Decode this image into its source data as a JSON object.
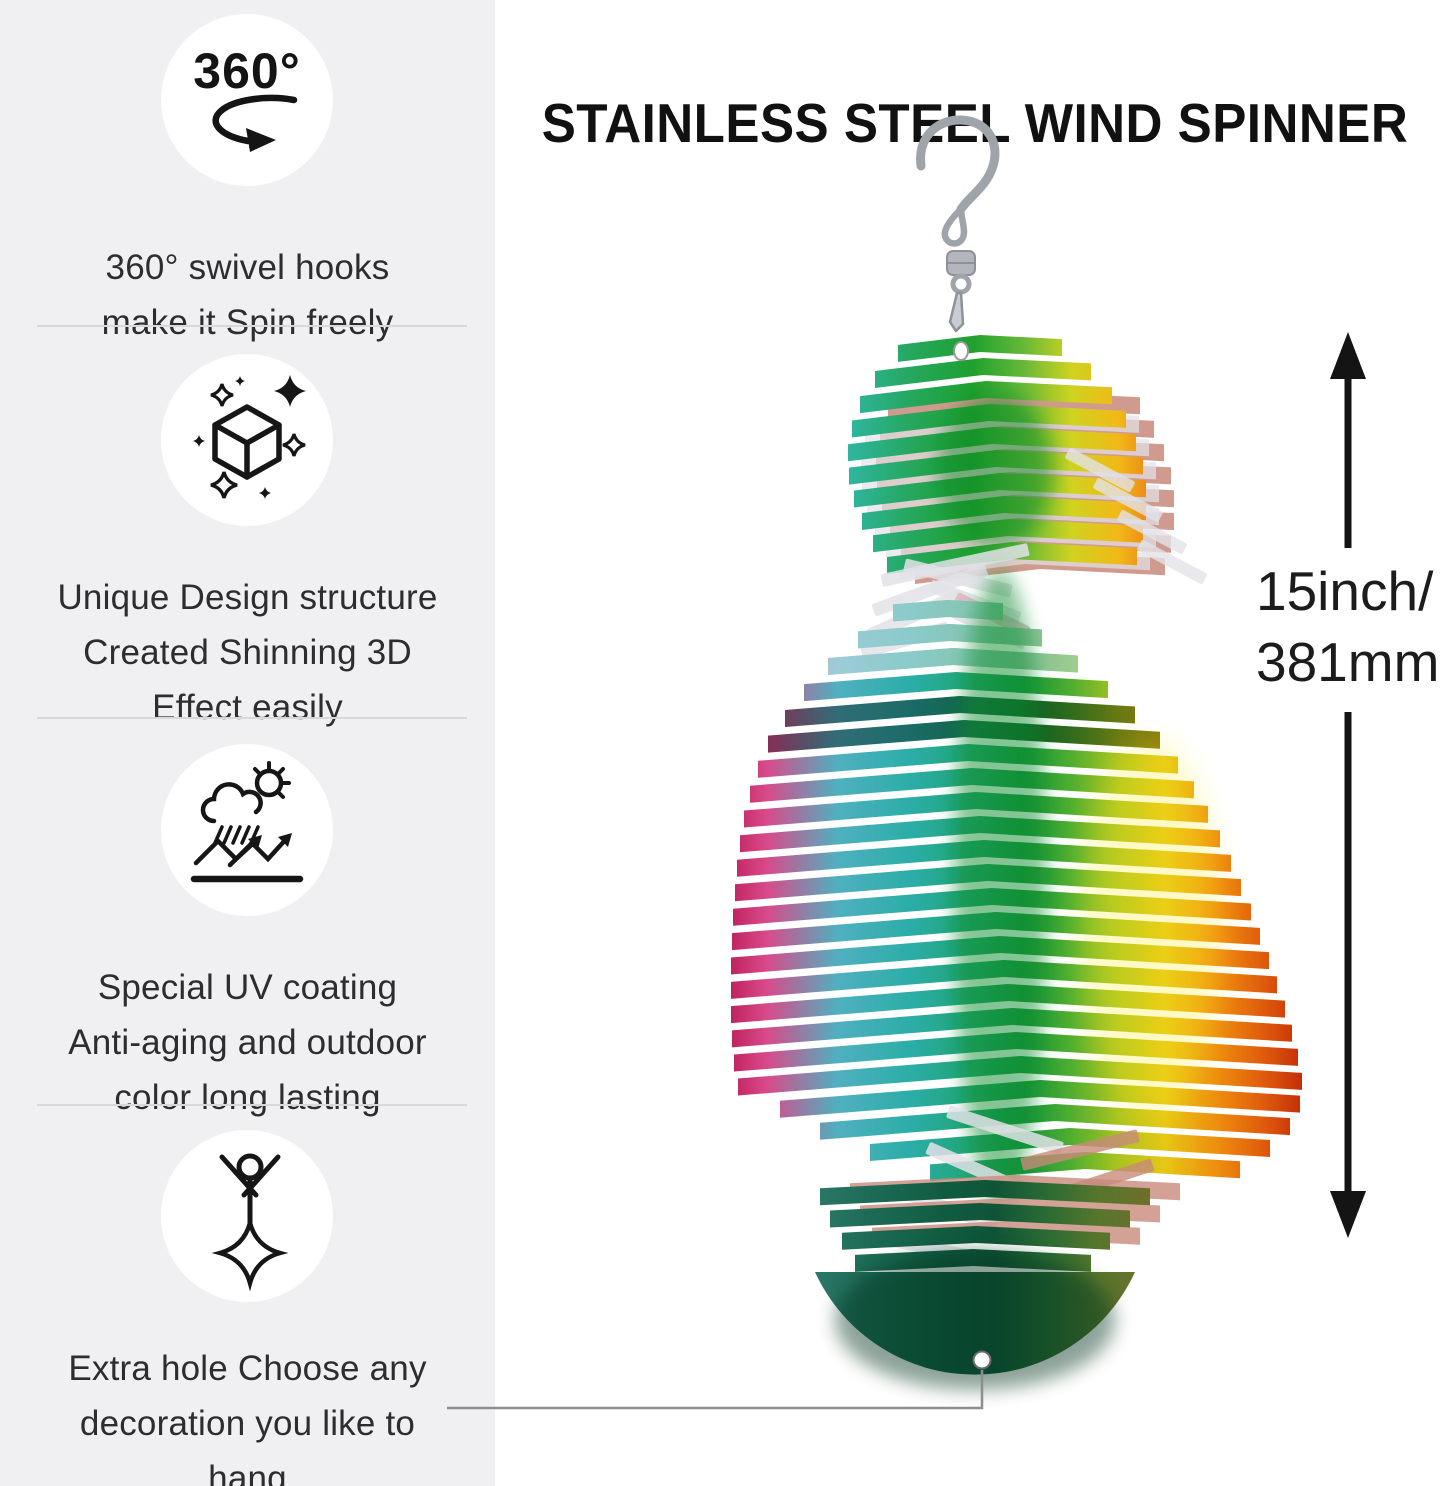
{
  "sidebar": {
    "features": [
      {
        "icon": "rotate-360-icon",
        "icon_label": "360°",
        "lines": [
          "360° swivel hooks",
          "make it Spin freely"
        ]
      },
      {
        "icon": "sparkle-box-icon",
        "lines": [
          "Unique Design structure",
          "Created Shinning 3D",
          "Effect easily"
        ]
      },
      {
        "icon": "uv-weather-icon",
        "lines": [
          "Special UV coating",
          "Anti-aging and outdoor",
          "color long lasting"
        ]
      },
      {
        "icon": "hanging-decoration-icon",
        "lines": [
          "Extra hole Choose any",
          "decoration you like to",
          "hang"
        ]
      }
    ]
  },
  "main": {
    "title": "STAINLESS STEEL WIND SPINNER",
    "dimension": {
      "line1": "15inch/",
      "line2": "381mm"
    }
  },
  "colors": {
    "background": "#ffffff",
    "sidebar_bg": "#f0eff2",
    "divider": "#d9d7db",
    "text": "#2d2d2d",
    "title": "#111111",
    "arrow": "#141414",
    "pointer_line": "#8d8d8d",
    "hook_metal": "#9fa4ab",
    "echo_salmon": "#c8897a",
    "echo_silver": "#e2e2e8",
    "gradient_top": [
      [
        "0%",
        "#49c3cf"
      ],
      [
        "15%",
        "#2eb49b"
      ],
      [
        "30%",
        "#25a75c"
      ],
      [
        "45%",
        "#1fa02f"
      ],
      [
        "58%",
        "#67b937"
      ],
      [
        "70%",
        "#cfd31f"
      ],
      [
        "82%",
        "#f2b818"
      ],
      [
        "92%",
        "#e87a16"
      ],
      [
        "100%",
        "#d8542e"
      ]
    ],
    "gradient_body": [
      [
        "0%",
        "#bb1653"
      ],
      [
        "8%",
        "#d84a8a"
      ],
      [
        "20%",
        "#4fb0c0"
      ],
      [
        "33%",
        "#2aada6"
      ],
      [
        "45%",
        "#1fa36b"
      ],
      [
        "52%",
        "#16953a"
      ],
      [
        "60%",
        "#4fae2f"
      ],
      [
        "68%",
        "#a8c31f"
      ],
      [
        "76%",
        "#e6c714"
      ],
      [
        "85%",
        "#ee8d0e"
      ],
      [
        "93%",
        "#e05a0d"
      ],
      [
        "100%",
        "#c22b06"
      ]
    ],
    "gradient_bottom": [
      [
        "0%",
        "#2f7a6b"
      ],
      [
        "20%",
        "#1c6a55"
      ],
      [
        "40%",
        "#115c41"
      ],
      [
        "55%",
        "#0f5438"
      ],
      [
        "70%",
        "#2a6b33"
      ],
      [
        "85%",
        "#57762c"
      ],
      [
        "100%",
        "#6f6f2c"
      ]
    ]
  }
}
